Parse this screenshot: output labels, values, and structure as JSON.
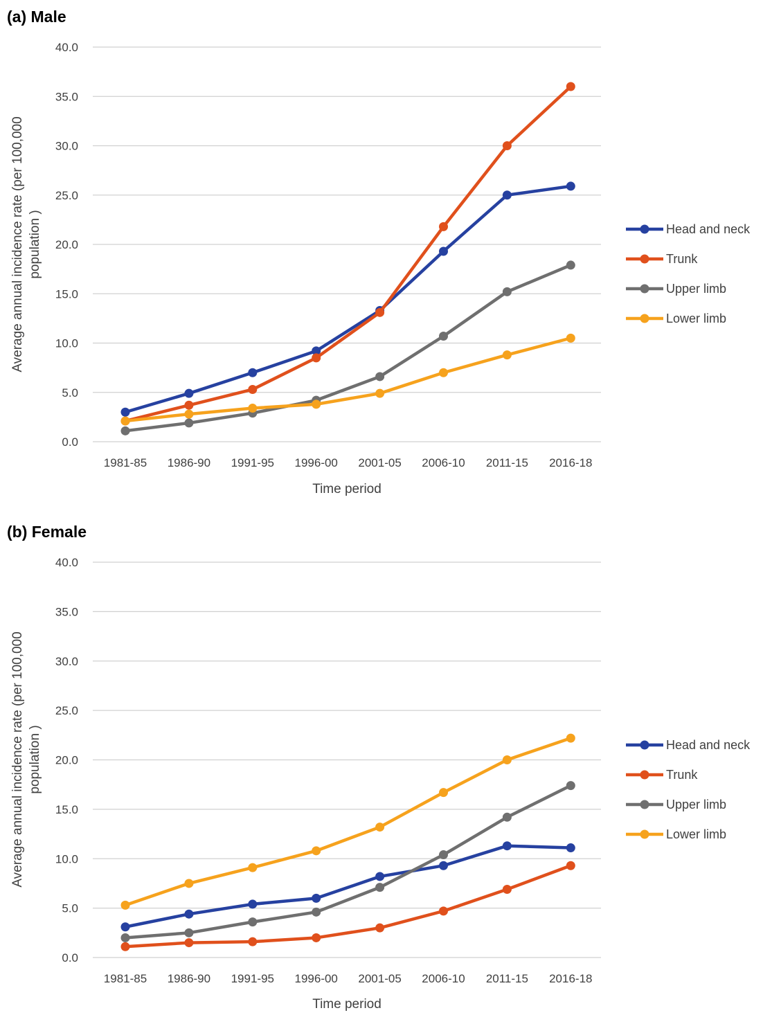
{
  "charts": [
    {
      "type": "line",
      "title": "(a) Male",
      "xlabel": "Time period",
      "ylabel_line1": "Average annual incidence rate (per 100,000",
      "ylabel_line2": "population )",
      "ylim": [
        0,
        40
      ],
      "y_ticks": [
        "0.0",
        "5.0",
        "10.0",
        "15.0",
        "20.0",
        "25.0",
        "30.0",
        "35.0",
        "40.0"
      ],
      "categories": [
        "1981-85",
        "1986-90",
        "1991-95",
        "1996-00",
        "2001-05",
        "2006-10",
        "2011-15",
        "2016-18"
      ],
      "grid": true,
      "legend_position": "right",
      "series": [
        {
          "name": "Head and neck",
          "color": "#2641a0",
          "values": [
            3.0,
            4.9,
            7.0,
            9.2,
            13.3,
            19.3,
            25.0,
            25.9
          ]
        },
        {
          "name": "Trunk",
          "color": "#e0501c",
          "values": [
            2.1,
            3.7,
            5.3,
            8.5,
            13.1,
            21.8,
            30.0,
            36.0
          ]
        },
        {
          "name": "Upper limb",
          "color": "#6f6f6f",
          "values": [
            1.1,
            1.9,
            2.9,
            4.2,
            6.6,
            10.7,
            15.2,
            17.9
          ]
        },
        {
          "name": "Lower limb",
          "color": "#f6a21d",
          "values": [
            2.1,
            2.8,
            3.4,
            3.8,
            4.9,
            7.0,
            8.8,
            10.5
          ]
        }
      ]
    },
    {
      "type": "line",
      "title": "(b) Female",
      "xlabel": "Time period",
      "ylabel_line1": "Average annual incidence rate (per 100,000",
      "ylabel_line2": "population )",
      "ylim": [
        0,
        40
      ],
      "y_ticks": [
        "0.0",
        "5.0",
        "10.0",
        "15.0",
        "20.0",
        "25.0",
        "30.0",
        "35.0",
        "40.0"
      ],
      "categories": [
        "1981-85",
        "1986-90",
        "1991-95",
        "1996-00",
        "2001-05",
        "2006-10",
        "2011-15",
        "2016-18"
      ],
      "grid": true,
      "legend_position": "right",
      "series": [
        {
          "name": "Head and neck",
          "color": "#2641a0",
          "values": [
            3.1,
            4.4,
            5.4,
            6.0,
            8.2,
            9.3,
            11.3,
            11.1
          ]
        },
        {
          "name": "Trunk",
          "color": "#e0501c",
          "values": [
            1.1,
            1.5,
            1.6,
            2.0,
            3.0,
            4.7,
            6.9,
            9.3
          ]
        },
        {
          "name": "Upper limb",
          "color": "#6f6f6f",
          "values": [
            2.0,
            2.5,
            3.6,
            4.6,
            7.1,
            10.4,
            14.2,
            17.4
          ]
        },
        {
          "name": "Lower limb",
          "color": "#f6a21d",
          "values": [
            5.3,
            7.5,
            9.1,
            10.8,
            13.2,
            16.7,
            20.0,
            22.2
          ]
        }
      ]
    }
  ]
}
